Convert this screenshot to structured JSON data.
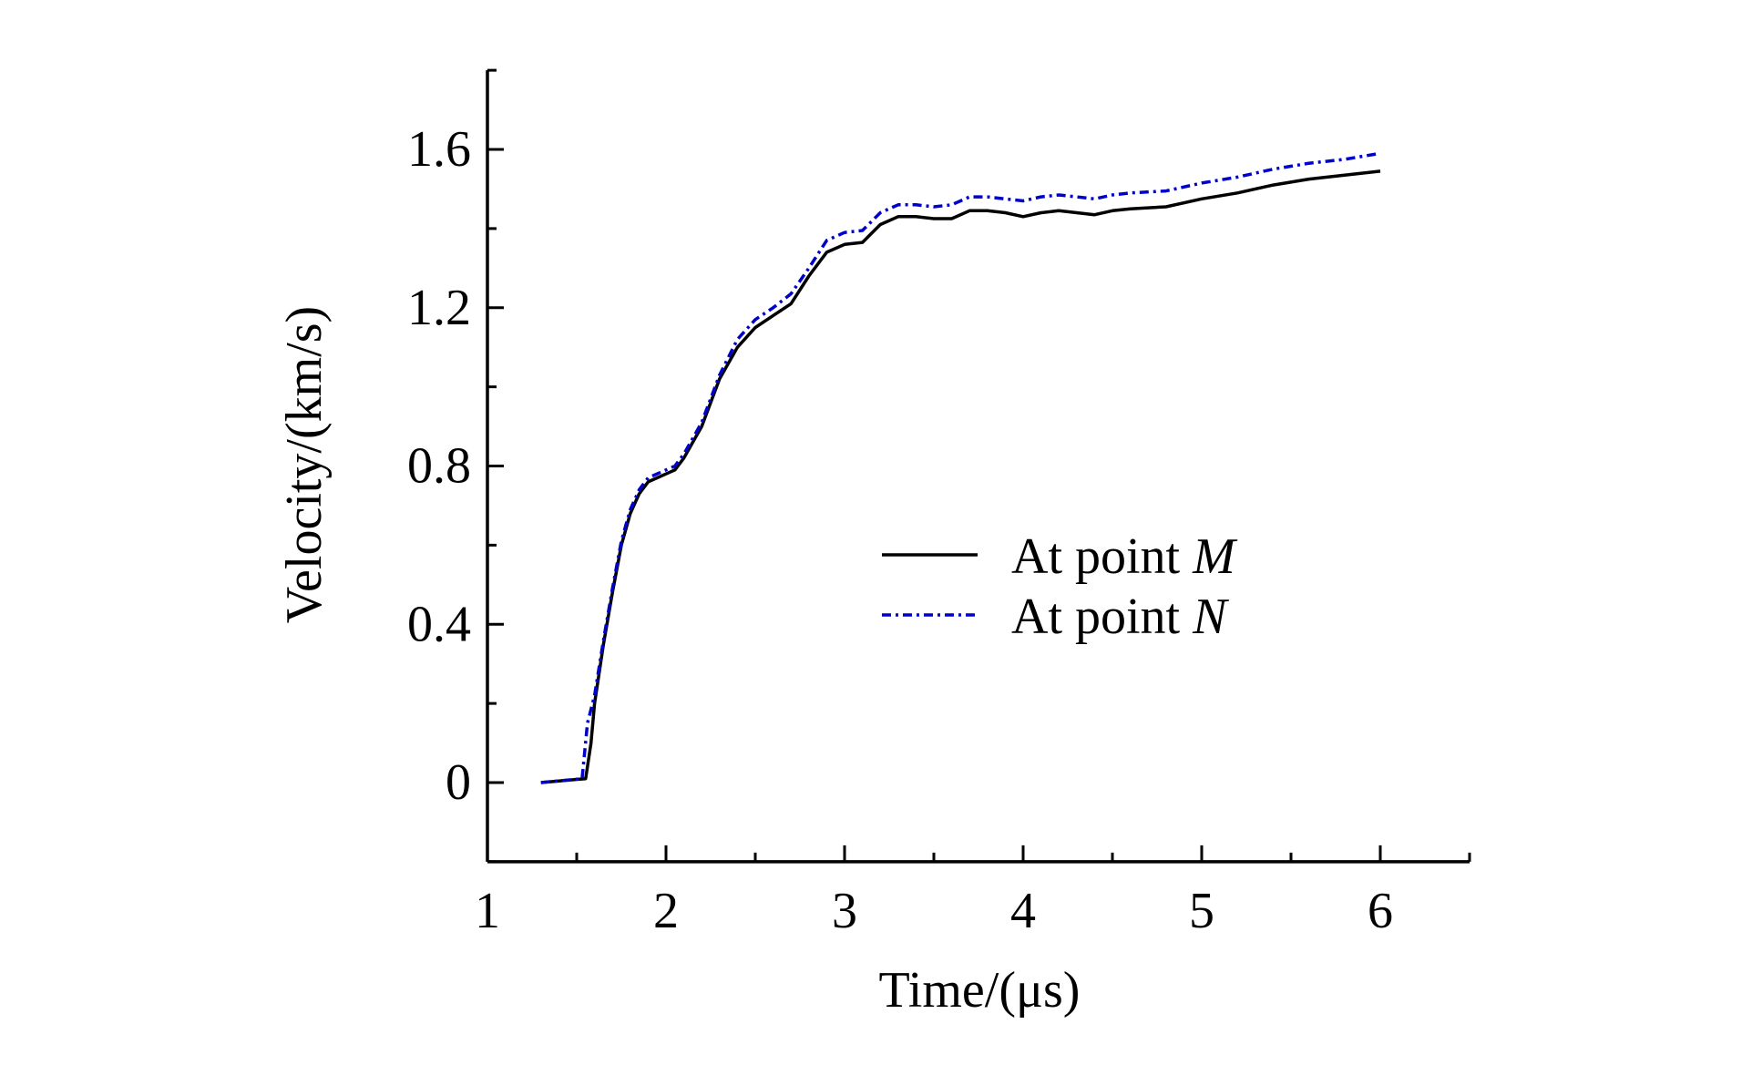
{
  "chart_data": {
    "type": "line",
    "title": "",
    "xlabel": "Time/(μs)",
    "ylabel": "Velocity/(km/s)",
    "xlim": [
      1,
      6.5
    ],
    "ylim": [
      -0.2,
      1.8
    ],
    "xticks": [
      1,
      2,
      3,
      4,
      5,
      6
    ],
    "xtick_labels": [
      "1",
      "2",
      "3",
      "4",
      "5",
      "6"
    ],
    "yticks": [
      0,
      0.4,
      0.8,
      1.2,
      1.6
    ],
    "ytick_labels": [
      "0",
      "0.4",
      "0.8",
      "1.2",
      "1.6"
    ],
    "grid": false,
    "legend_position": "center-right",
    "series": [
      {
        "name": "At point M",
        "legend_prefix": "At point ",
        "legend_italic": "M",
        "color": "#000000",
        "style": "solid",
        "x": [
          1.3,
          1.55,
          1.58,
          1.6,
          1.65,
          1.7,
          1.75,
          1.8,
          1.85,
          1.9,
          2.0,
          2.05,
          2.1,
          2.2,
          2.3,
          2.4,
          2.5,
          2.6,
          2.7,
          2.8,
          2.9,
          3.0,
          3.1,
          3.2,
          3.3,
          3.4,
          3.5,
          3.6,
          3.7,
          3.8,
          3.9,
          4.0,
          4.1,
          4.2,
          4.3,
          4.4,
          4.5,
          4.6,
          4.8,
          5.0,
          5.2,
          5.4,
          5.6,
          5.8,
          6.0
        ],
        "y": [
          0,
          0.01,
          0.1,
          0.2,
          0.35,
          0.48,
          0.6,
          0.68,
          0.73,
          0.76,
          0.78,
          0.79,
          0.82,
          0.9,
          1.02,
          1.1,
          1.15,
          1.18,
          1.21,
          1.28,
          1.34,
          1.36,
          1.365,
          1.41,
          1.43,
          1.43,
          1.425,
          1.425,
          1.445,
          1.445,
          1.44,
          1.43,
          1.44,
          1.445,
          1.44,
          1.435,
          1.445,
          1.45,
          1.455,
          1.475,
          1.49,
          1.51,
          1.525,
          1.535,
          1.545
        ]
      },
      {
        "name": "At point N",
        "legend_prefix": "At point ",
        "legend_italic": "N",
        "color": "#0000cc",
        "style": "dashdot",
        "x": [
          1.3,
          1.53,
          1.56,
          1.6,
          1.65,
          1.7,
          1.75,
          1.8,
          1.85,
          1.9,
          2.0,
          2.05,
          2.1,
          2.2,
          2.3,
          2.4,
          2.5,
          2.6,
          2.7,
          2.8,
          2.9,
          3.0,
          3.1,
          3.2,
          3.3,
          3.4,
          3.5,
          3.6,
          3.7,
          3.8,
          3.9,
          4.0,
          4.1,
          4.2,
          4.3,
          4.4,
          4.5,
          4.6,
          4.8,
          5.0,
          5.2,
          5.4,
          5.6,
          5.8,
          6.0
        ],
        "y": [
          0,
          0.01,
          0.15,
          0.22,
          0.36,
          0.49,
          0.61,
          0.69,
          0.74,
          0.77,
          0.79,
          0.8,
          0.83,
          0.91,
          1.03,
          1.12,
          1.17,
          1.2,
          1.235,
          1.3,
          1.37,
          1.39,
          1.395,
          1.44,
          1.46,
          1.46,
          1.455,
          1.46,
          1.48,
          1.48,
          1.475,
          1.47,
          1.48,
          1.485,
          1.48,
          1.475,
          1.485,
          1.49,
          1.495,
          1.515,
          1.53,
          1.55,
          1.565,
          1.575,
          1.59
        ]
      }
    ]
  }
}
